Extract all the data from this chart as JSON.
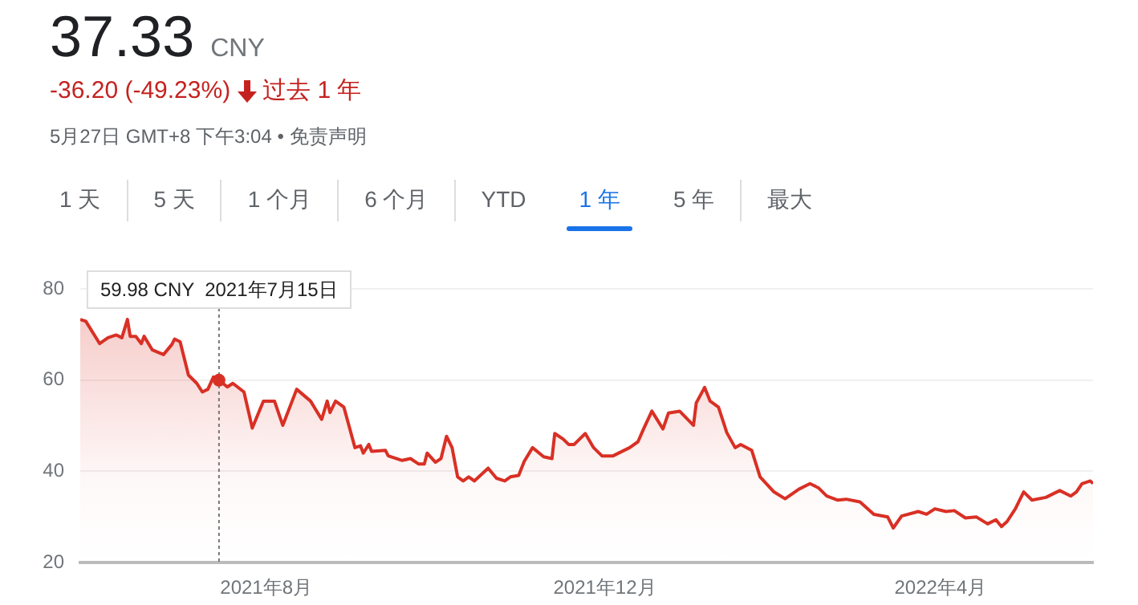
{
  "chart_data": {
    "type": "area",
    "title": "37.33",
    "subtitle": "CNY",
    "annotations": [
      "-36.20 (-49.23%)",
      "过去 1 年",
      "5月27日 GMT+8 下午3:04 • 免责声明",
      "1 天",
      "5 天",
      "1 个月",
      "6 个月",
      "YTD",
      "1 年",
      "5 年",
      "最大",
      "59.98 CNY  2021年7月15日"
    ],
    "ref_lines": [
      {
        "axis": "x",
        "value": "2021-07-15",
        "color": "#777777",
        "line_style": "dotted"
      }
    ],
    "x": [
      "2021-05-26",
      "2021-05-28",
      "2021-06-02",
      "2021-06-05",
      "2021-06-08",
      "2021-06-10",
      "2021-06-12",
      "2021-06-13",
      "2021-06-15",
      "2021-06-17",
      "2021-06-18",
      "2021-06-21",
      "2021-06-25",
      "2021-06-28",
      "2021-06-29",
      "2021-07-01",
      "2021-07-04",
      "2021-07-07",
      "2021-07-09",
      "2021-07-11",
      "2021-07-13",
      "2021-07-15",
      "2021-07-18",
      "2021-07-20",
      "2021-07-24",
      "2021-07-27",
      "2021-07-31",
      "2021-08-04",
      "2021-08-07",
      "2021-08-12",
      "2021-08-17",
      "2021-08-21",
      "2021-08-23",
      "2021-08-24",
      "2021-08-26",
      "2021-08-29",
      "2021-09-02",
      "2021-09-04",
      "2021-09-05",
      "2021-09-07",
      "2021-09-08",
      "2021-09-13",
      "2021-09-14",
      "2021-09-19",
      "2021-09-22",
      "2021-09-25",
      "2021-09-27",
      "2021-09-28",
      "2021-10-01",
      "2021-10-03",
      "2021-10-05",
      "2021-10-07",
      "2021-10-09",
      "2021-10-11",
      "2021-10-13",
      "2021-10-15",
      "2021-10-20",
      "2021-10-23",
      "2021-10-26",
      "2021-10-28",
      "2021-10-31",
      "2021-11-02",
      "2021-11-05",
      "2021-11-09",
      "2021-11-12",
      "2021-11-13",
      "2021-11-16",
      "2021-11-18",
      "2021-11-20",
      "2021-11-24",
      "2021-11-27",
      "2021-11-30",
      "2021-12-04",
      "2021-12-10",
      "2021-12-13",
      "2021-12-15",
      "2021-12-18",
      "2021-12-22",
      "2021-12-24",
      "2021-12-28",
      "2022-01-02",
      "2022-01-03",
      "2022-01-06",
      "2022-01-08",
      "2022-01-11",
      "2022-01-14",
      "2022-01-17",
      "2022-01-19",
      "2022-01-23",
      "2022-01-26",
      "2022-01-31",
      "2022-02-04",
      "2022-02-09",
      "2022-02-13",
      "2022-02-16",
      "2022-02-19",
      "2022-02-23",
      "2022-02-26",
      "2022-03-03",
      "2022-03-08",
      "2022-03-13",
      "2022-03-15",
      "2022-03-18",
      "2022-03-24",
      "2022-03-27",
      "2022-03-30",
      "2022-04-03",
      "2022-04-06",
      "2022-04-10",
      "2022-04-14",
      "2022-04-18",
      "2022-04-21",
      "2022-04-23",
      "2022-04-25",
      "2022-04-28",
      "2022-05-01",
      "2022-05-04",
      "2022-05-09",
      "2022-05-14",
      "2022-05-18",
      "2022-05-20",
      "2022-05-22",
      "2022-05-25",
      "2022-05-26"
    ],
    "values": [
      73.3,
      72.9,
      68.0,
      69.3,
      69.9,
      69.3,
      73.3,
      69.6,
      69.6,
      68.0,
      69.6,
      66.6,
      65.6,
      67.8,
      69.0,
      68.4,
      61.1,
      59.3,
      57.4,
      58.0,
      60.7,
      59.98,
      58.5,
      59.3,
      57.4,
      49.5,
      55.4,
      55.4,
      50.1,
      58.0,
      55.4,
      51.4,
      55.4,
      52.9,
      55.4,
      54.1,
      45.2,
      45.6,
      44.0,
      45.9,
      44.4,
      44.6,
      43.4,
      42.4,
      42.8,
      41.6,
      41.6,
      44.0,
      42.0,
      42.8,
      47.7,
      45.2,
      38.8,
      37.9,
      38.8,
      37.9,
      40.7,
      38.5,
      37.9,
      38.8,
      39.1,
      42.2,
      45.2,
      43.2,
      42.8,
      48.3,
      47.1,
      45.9,
      45.9,
      48.3,
      45.2,
      43.4,
      43.4,
      45.2,
      46.5,
      49.3,
      53.2,
      49.3,
      52.8,
      53.2,
      50.1,
      55.0,
      58.4,
      55.4,
      54.1,
      48.5,
      45.2,
      45.9,
      44.6,
      38.8,
      35.5,
      34.0,
      36.1,
      37.3,
      36.4,
      34.6,
      33.7,
      33.9,
      33.3,
      30.6,
      30.0,
      27.6,
      30.2,
      31.2,
      30.6,
      31.8,
      31.2,
      31.4,
      29.8,
      30.0,
      28.5,
      29.4,
      27.9,
      29.0,
      31.8,
      35.5,
      33.7,
      34.3,
      35.8,
      34.6,
      35.5,
      37.3,
      37.9,
      37.33
    ],
    "color": "#d93025",
    "xlim": [
      "2021-05-26",
      "2022-05-26"
    ],
    "xticks": [
      {
        "value": "2021-08-01",
        "label": "2021年8月"
      },
      {
        "value": "2021-12-01",
        "label": "2021年12月"
      },
      {
        "value": "2022-04-01",
        "label": "2022年4月"
      }
    ],
    "ylim": [
      20,
      80
    ],
    "yticks": [
      20,
      40,
      60,
      80
    ],
    "grid": "y"
  }
}
